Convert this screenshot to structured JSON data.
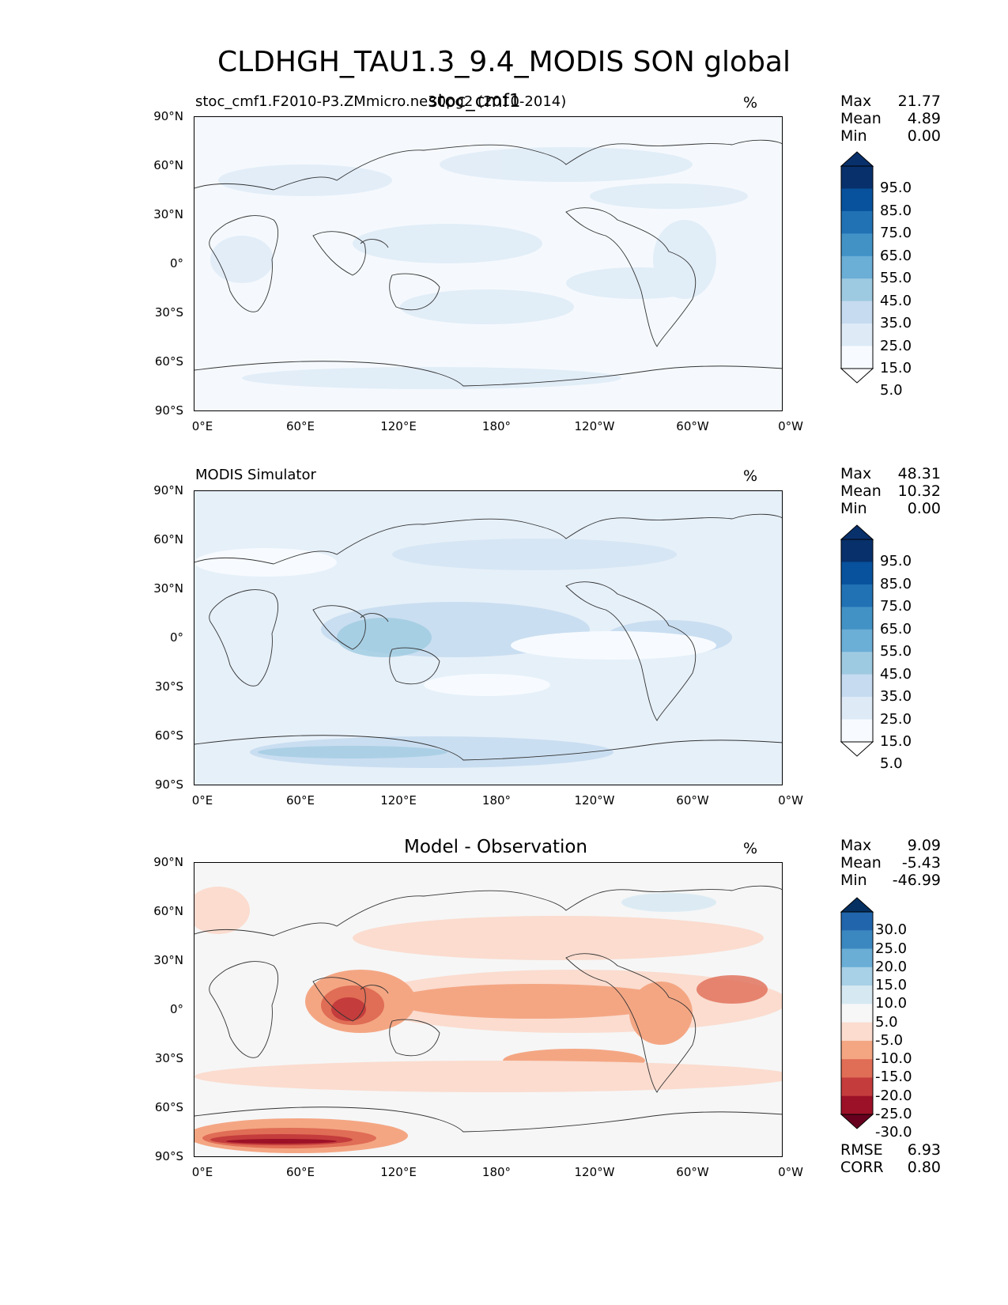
{
  "figure": {
    "suptitle": "CLDHGH_TAU1.3_9.4_MODIS SON global"
  },
  "panels": [
    {
      "id": "model",
      "left_title": "stoc_cmf1.F2010-P3.ZMmicro.ne30pg2 (2010-2014)",
      "center_title": "stoc_cmf1",
      "units": "%",
      "stats": [
        {
          "label": "Max",
          "value": "21.77"
        },
        {
          "label": "Mean",
          "value": "4.89"
        },
        {
          "label": "Min",
          "value": "0.00"
        }
      ],
      "colorbar": {
        "labels": [
          "95.0",
          "85.0",
          "75.0",
          "65.0",
          "55.0",
          "45.0",
          "35.0",
          "25.0",
          "15.0",
          "5.0"
        ],
        "colors": [
          "#08306b",
          "#08519c",
          "#2171b5",
          "#4292c6",
          "#6baed6",
          "#9ecae1",
          "#c6dbef",
          "#deebf7",
          "#f7fbff"
        ],
        "over": "#08306b",
        "under": "#ffffff"
      }
    },
    {
      "id": "obs",
      "left_title": "MODIS Simulator",
      "center_title": "",
      "units": "%",
      "stats": [
        {
          "label": "Max",
          "value": "48.31"
        },
        {
          "label": "Mean",
          "value": "10.32"
        },
        {
          "label": "Min",
          "value": "0.00"
        }
      ],
      "colorbar": {
        "labels": [
          "95.0",
          "85.0",
          "75.0",
          "65.0",
          "55.0",
          "45.0",
          "35.0",
          "25.0",
          "15.0",
          "5.0"
        ],
        "colors": [
          "#08306b",
          "#08519c",
          "#2171b5",
          "#4292c6",
          "#6baed6",
          "#9ecae1",
          "#c6dbef",
          "#deebf7",
          "#f7fbff"
        ],
        "over": "#08306b",
        "under": "#ffffff"
      }
    },
    {
      "id": "diff",
      "left_title": "",
      "center_title": "Model - Observation",
      "units": "%",
      "stats": [
        {
          "label": "Max",
          "value": "9.09"
        },
        {
          "label": "Mean",
          "value": "-5.43"
        },
        {
          "label": "Min",
          "value": "-46.99"
        }
      ],
      "extra_stats": [
        {
          "label": "RMSE",
          "value": "6.93"
        },
        {
          "label": "CORR",
          "value": "0.80"
        }
      ],
      "colorbar": {
        "labels": [
          "30.0",
          "25.0",
          "20.0",
          "15.0",
          "10.0",
          "5.0",
          "-5.0",
          "-10.0",
          "-15.0",
          "-20.0",
          "-25.0",
          "-30.0"
        ],
        "colors": [
          "#2166ac",
          "#3b88c0",
          "#6aaed6",
          "#a8d0e7",
          "#d6e9f2",
          "#f7f7f7",
          "#fbdccf",
          "#f4a683",
          "#e06d55",
          "#c43c3c",
          "#9c1127"
        ],
        "over": "#053061",
        "under": "#67001f"
      }
    }
  ],
  "axes": {
    "lat_ticks": [
      "90°N",
      "60°N",
      "30°N",
      "0°",
      "30°S",
      "60°S",
      "90°S"
    ],
    "lon_ticks": [
      "0°E",
      "60°E",
      "120°E",
      "180°",
      "120°W",
      "60°W",
      "0°W"
    ]
  },
  "colors": {
    "ocean_light_blue": "#f4f8fd",
    "diff_neutral": "#f6f6f6"
  }
}
